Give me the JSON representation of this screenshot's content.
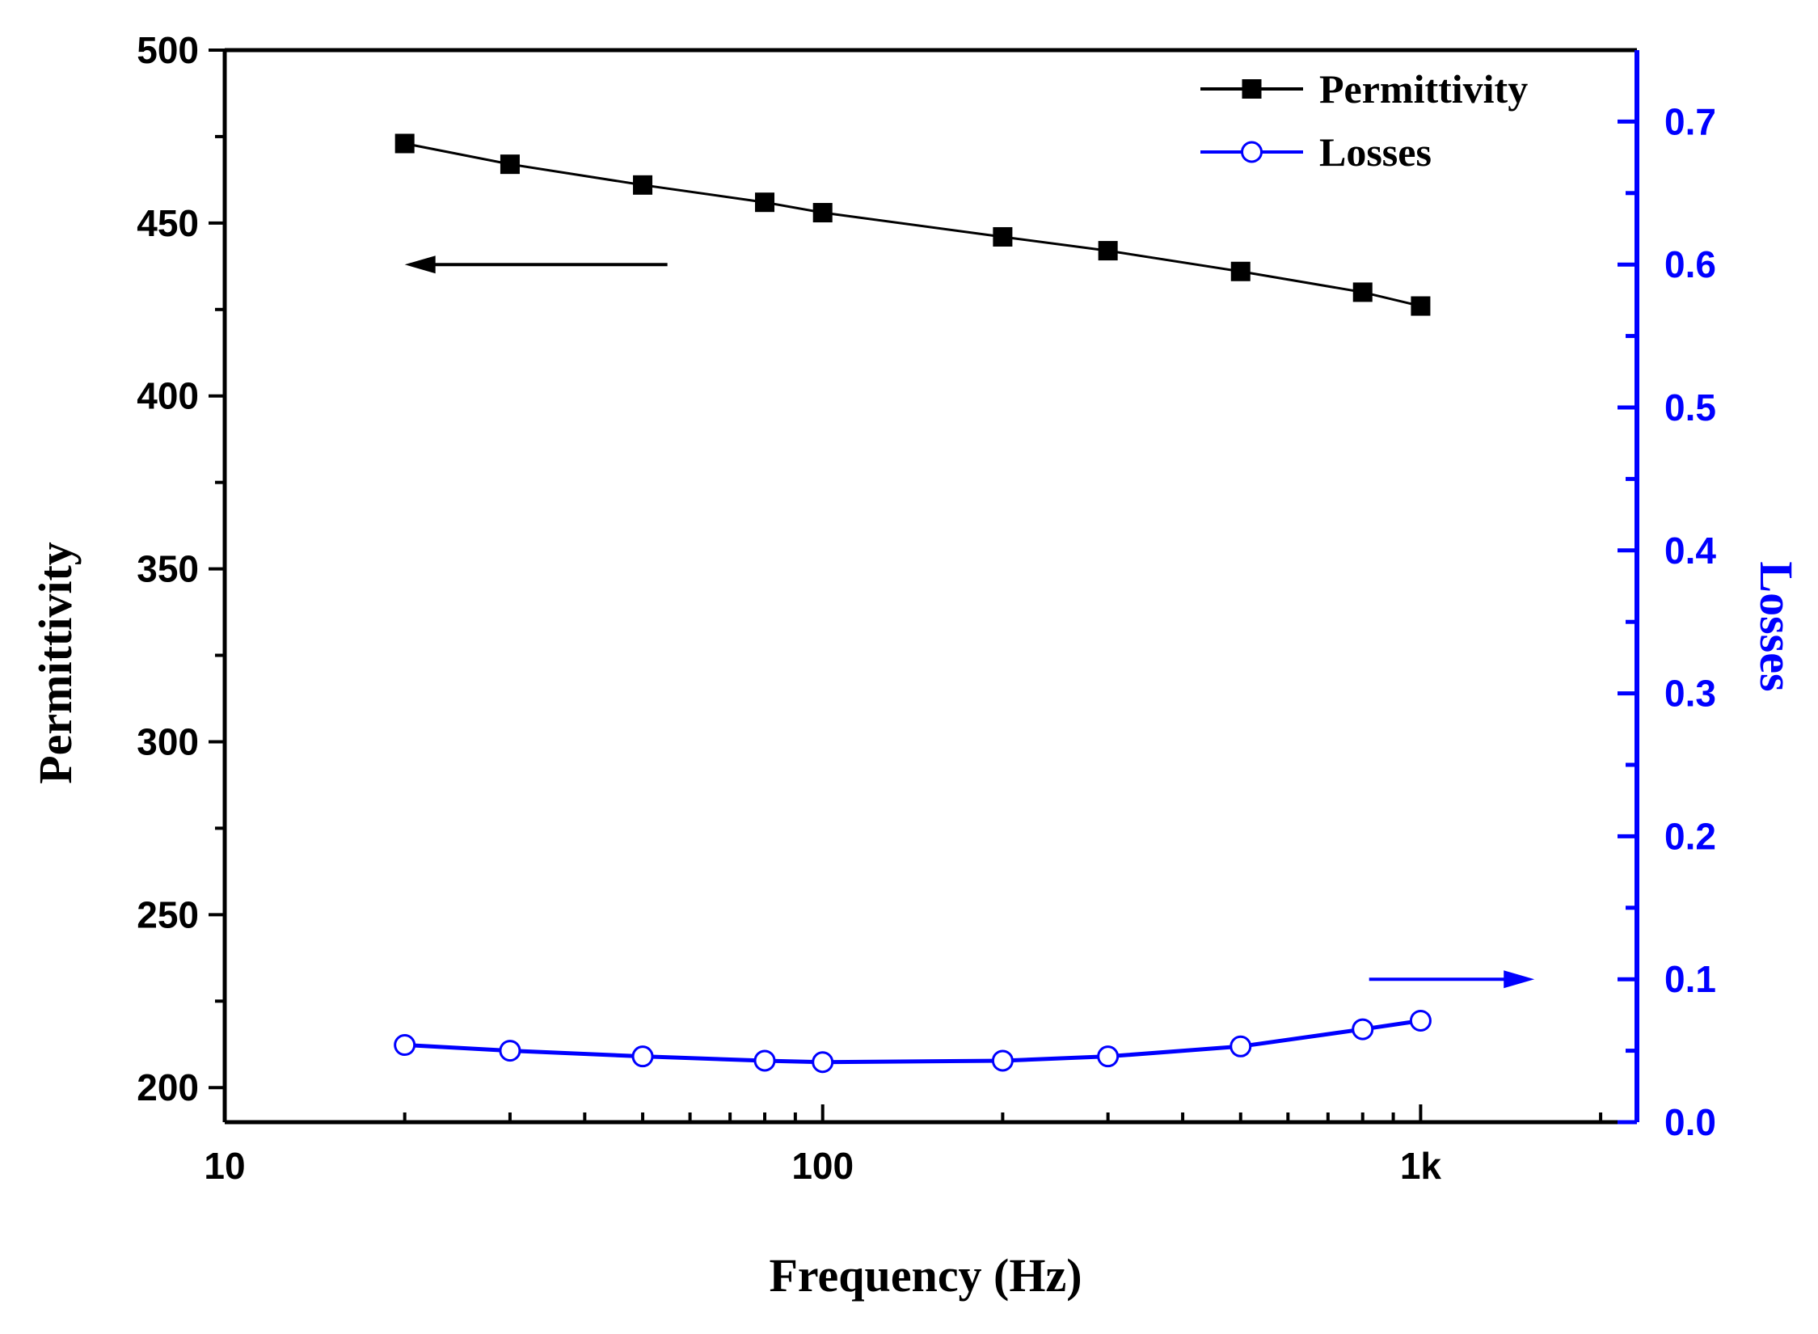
{
  "chart_data": {
    "type": "line",
    "title": "",
    "xlabel": "Frequency (Hz)",
    "ylabel_left": "Permittivity",
    "ylabel_right": "Losses",
    "xscale": "log",
    "xlim": [
      10,
      2300
    ],
    "xticks": [
      {
        "value": 10,
        "label": "10"
      },
      {
        "value": 100,
        "label": "100"
      },
      {
        "value": 1000,
        "label": "1k"
      }
    ],
    "ylim_left": [
      190,
      500
    ],
    "yticks_left": [
      {
        "value": 200,
        "label": "200"
      },
      {
        "value": 250,
        "label": "250"
      },
      {
        "value": 300,
        "label": "300"
      },
      {
        "value": 350,
        "label": "350"
      },
      {
        "value": 400,
        "label": "400"
      },
      {
        "value": 450,
        "label": "450"
      },
      {
        "value": 500,
        "label": "500"
      }
    ],
    "ylim_right": [
      0,
      0.75
    ],
    "yticks_right": [
      {
        "value": 0.0,
        "label": "0.0"
      },
      {
        "value": 0.1,
        "label": "0.1"
      },
      {
        "value": 0.2,
        "label": "0.2"
      },
      {
        "value": 0.3,
        "label": "0.3"
      },
      {
        "value": 0.4,
        "label": "0.4"
      },
      {
        "value": 0.5,
        "label": "0.5"
      },
      {
        "value": 0.6,
        "label": "0.6"
      },
      {
        "value": 0.7,
        "label": "0.7"
      }
    ],
    "legend_position": "top-right",
    "colors": {
      "permittivity": "#000000",
      "losses": "#0000ff"
    },
    "series": [
      {
        "name": "Permittivity",
        "axis": "left",
        "marker": "filled-square",
        "x": [
          20,
          30,
          50,
          80,
          100,
          200,
          300,
          500,
          800,
          1000
        ],
        "y": [
          473,
          467,
          461,
          456,
          453,
          446,
          442,
          436,
          430,
          426
        ]
      },
      {
        "name": "Losses",
        "axis": "right",
        "marker": "open-circle",
        "x": [
          20,
          30,
          50,
          80,
          100,
          200,
          300,
          500,
          800,
          1000
        ],
        "y": [
          0.054,
          0.05,
          0.046,
          0.043,
          0.042,
          0.043,
          0.046,
          0.053,
          0.065,
          0.071
        ]
      }
    ],
    "annotations": [
      {
        "type": "arrow",
        "direction": "left",
        "refers_to": "Permittivity"
      },
      {
        "type": "arrow",
        "direction": "right",
        "refers_to": "Losses"
      }
    ]
  }
}
